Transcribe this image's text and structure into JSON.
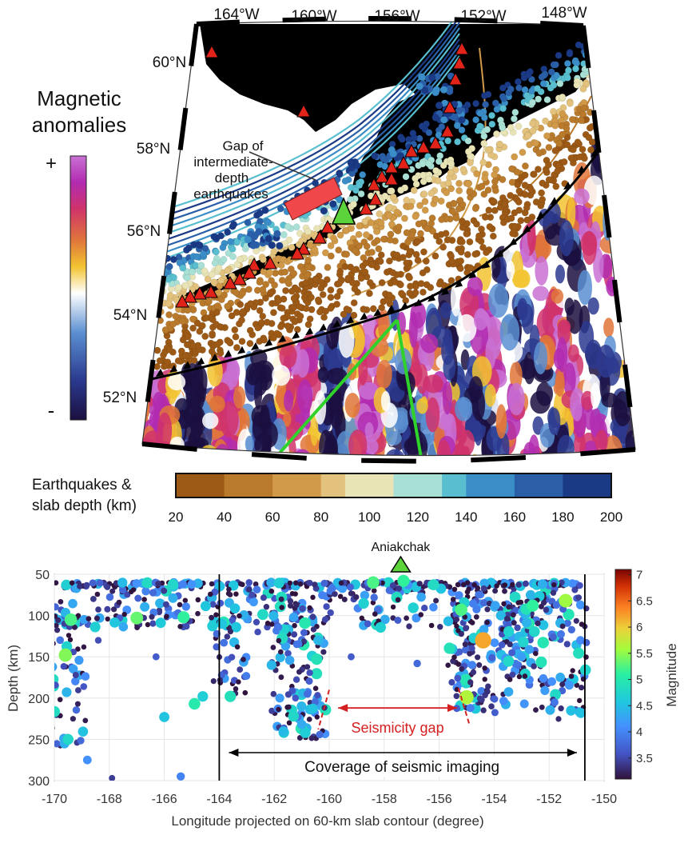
{
  "map": {
    "lon_labels": [
      "164°W",
      "160°W",
      "156°W",
      "152°W",
      "148°W"
    ],
    "lat_labels": [
      "60°N",
      "58°N",
      "56°N",
      "54°N",
      "52°N"
    ],
    "gap_annotation": [
      "Gap of",
      "intermediate-",
      "depth",
      "earthquakes"
    ],
    "colors": {
      "land": "#c9c9c9",
      "volcano": "#e2231a",
      "aniakchak": "#5cd33b",
      "profile_line": "#2fd22a",
      "gap_box": "#f0474b",
      "trench": "#000000"
    }
  },
  "magnetic_legend": {
    "title_line1": "Magnetic",
    "title_line2": "anomalies",
    "plus": "+",
    "minus": "-",
    "colors": [
      "#1b0f3f",
      "#2b3a8f",
      "#5b8fd1",
      "#ffffff",
      "#f2c431",
      "#e0763a",
      "#d0336b",
      "#b12bb0",
      "#c971d4"
    ]
  },
  "depth_colorbar": {
    "title_line1": "Earthquakes &",
    "title_line2": "slab depth (km)",
    "ticks": [
      "20",
      "40",
      "60",
      "80",
      "100",
      "120",
      "140",
      "160",
      "180",
      "200"
    ],
    "colors": [
      "#9c5a16",
      "#b97a2c",
      "#d09a48",
      "#e2c27c",
      "#e9e4b6",
      "#a9e0d6",
      "#59bfd0",
      "#3a8dc6",
      "#2a5fa8",
      "#1b3a86"
    ]
  },
  "chart_data": {
    "type": "scatter",
    "title": "",
    "xlabel": "Longitude projected on 60-km slab contour (degree)",
    "ylabel": "Depth (km)",
    "xlim": [
      -170,
      -150
    ],
    "ylim": [
      300,
      50
    ],
    "x_ticks": [
      "-170",
      "-168",
      "-166",
      "-164",
      "-162",
      "-160",
      "-158",
      "-156",
      "-154",
      "-152",
      "-150"
    ],
    "y_ticks": [
      "50",
      "100",
      "150",
      "200",
      "250",
      "300"
    ],
    "grid": true,
    "volcano_label": "Aniakchak",
    "volcano_longitude": -157.4,
    "coverage_bounds": [
      -164,
      -150.7
    ],
    "coverage_label": "Coverage of seismic imaging",
    "gap_label": "Seismicity gap",
    "gap_bounds": [
      -160.2,
      -155
    ],
    "magnitude_colorbar": {
      "label": "Magnitude",
      "ticks": [
        "3.5",
        "4",
        "4.5",
        "5",
        "5.5",
        "6",
        "6.5",
        "7"
      ],
      "range": [
        3.1,
        7.1
      ]
    },
    "points": [
      {
        "x": -169.4,
        "y": 105,
        "m": 5.0
      },
      {
        "x": -169.6,
        "y": 148,
        "m": 5.2
      },
      {
        "x": -167.0,
        "y": 103,
        "m": 5.1
      },
      {
        "x": -165.3,
        "y": 102,
        "m": 4.9
      },
      {
        "x": -166.0,
        "y": 223,
        "m": 4.4
      },
      {
        "x": -164.9,
        "y": 207,
        "m": 4.8
      },
      {
        "x": -163.6,
        "y": 198,
        "m": 4.7
      },
      {
        "x": -164.6,
        "y": 198,
        "m": 4.5
      },
      {
        "x": -158.4,
        "y": 60,
        "m": 5.0
      },
      {
        "x": -157.3,
        "y": 58,
        "m": 4.9
      },
      {
        "x": -155.0,
        "y": 199,
        "m": 5.4
      },
      {
        "x": -154.4,
        "y": 130,
        "m": 6.0
      },
      {
        "x": -151.4,
        "y": 82,
        "m": 5.3
      },
      {
        "x": -155.2,
        "y": 93,
        "m": 5.0
      },
      {
        "x": -152.6,
        "y": 88,
        "m": 4.9
      },
      {
        "x": -169.5,
        "y": 250,
        "m": 4.6
      },
      {
        "x": -168.8,
        "y": 275,
        "m": 4.0
      },
      {
        "x": -167.9,
        "y": 297,
        "m": 3.4
      },
      {
        "x": -165.4,
        "y": 295,
        "m": 3.9
      },
      {
        "x": -161.3,
        "y": 222,
        "m": 4.6
      },
      {
        "x": -161.0,
        "y": 232,
        "m": 4.2
      },
      {
        "x": -160.6,
        "y": 213,
        "m": 4.4
      },
      {
        "x": -162.1,
        "y": 160,
        "m": 4.3
      },
      {
        "x": -161.8,
        "y": 200,
        "m": 4.1
      },
      {
        "x": -151.8,
        "y": 205,
        "m": 3.8
      },
      {
        "x": -151.9,
        "y": 180,
        "m": 4.0
      },
      {
        "x": -153.0,
        "y": 150,
        "m": 4.1
      },
      {
        "x": -154.8,
        "y": 160,
        "m": 3.9
      },
      {
        "x": -156.8,
        "y": 158,
        "m": 3.7
      },
      {
        "x": -159.2,
        "y": 150,
        "m": 3.6
      },
      {
        "x": -163.9,
        "y": 110,
        "m": 4.4
      },
      {
        "x": -166.3,
        "y": 150,
        "m": 3.6
      },
      {
        "x": -168.4,
        "y": 130,
        "m": 3.5
      },
      {
        "x": -160.4,
        "y": 130,
        "m": 4.3
      },
      {
        "x": -162.6,
        "y": 120,
        "m": 3.5
      },
      {
        "x": -158.6,
        "y": 110,
        "m": 3.6
      }
    ]
  }
}
